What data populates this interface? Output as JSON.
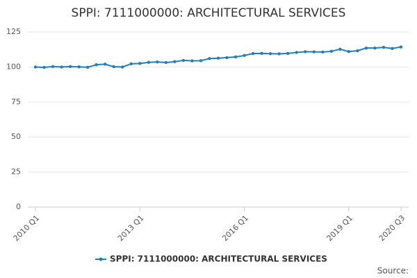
{
  "chart_data": {
    "type": "line",
    "title": "SPPI: 7111000000: ARCHITECTURAL SERVICES",
    "source": "Source:",
    "categories": [
      "2010 Q1",
      null,
      null,
      null,
      null,
      null,
      null,
      null,
      null,
      null,
      null,
      null,
      "2013 Q1",
      null,
      null,
      null,
      null,
      null,
      null,
      null,
      null,
      null,
      null,
      null,
      "2016 Q1",
      null,
      null,
      null,
      null,
      null,
      null,
      null,
      null,
      null,
      null,
      null,
      "2019 Q1",
      null,
      null,
      null,
      null,
      null,
      "2020 Q3"
    ],
    "series": [
      {
        "name": "SPPI: 7111000000: ARCHITECTURAL SERVICES",
        "color": "#1f7fb6",
        "values": [
          100,
          99.7,
          100.3,
          100,
          100.3,
          100.1,
          99.8,
          101.6,
          102,
          100.2,
          100,
          102.3,
          102.5,
          103.3,
          103.6,
          103.2,
          103.8,
          104.7,
          104.4,
          104.5,
          106,
          106.3,
          106.7,
          107.2,
          108.2,
          109.6,
          109.7,
          109.5,
          109.4,
          109.7,
          110.4,
          110.9,
          110.8,
          110.7,
          111.2,
          112.7,
          111,
          111.6,
          113.5,
          113.5,
          114,
          113.2,
          114.3
        ]
      }
    ],
    "ylim": [
      0,
      125
    ],
    "yticks": [
      0,
      25,
      50,
      75,
      100,
      125
    ],
    "grid": true,
    "legend": "bottom"
  }
}
